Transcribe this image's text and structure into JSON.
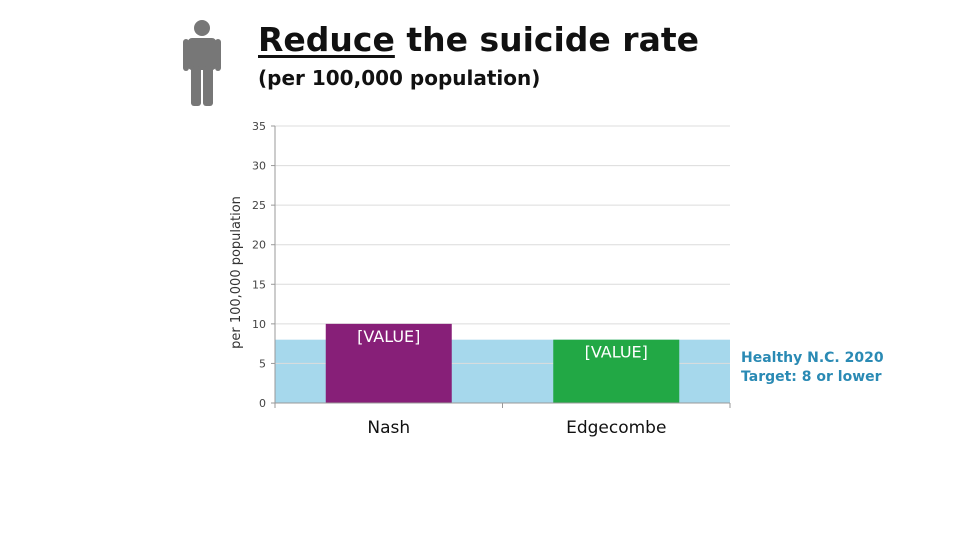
{
  "title": {
    "underlined": "Reduce",
    "rest": " the suicide rate",
    "subtitle": "(per 100,000 population)"
  },
  "icon": "person-icon",
  "chart_data": {
    "type": "bar",
    "categories": [
      "Nash",
      "Edgecombe"
    ],
    "values": [
      10,
      8
    ],
    "bar_labels": [
      "[VALUE]",
      "[VALUE]"
    ],
    "colors": [
      "#871f78",
      "#22a845"
    ],
    "ylabel": "per 100,000 population",
    "ylim": [
      0,
      35
    ],
    "yticks": [
      0,
      5,
      10,
      15,
      20,
      25,
      30,
      35
    ],
    "grid": true,
    "target_band": {
      "value": 8,
      "color": "#a6d8ec",
      "label_lines": [
        "Healthy N.C. 2020",
        "Target: 8 or lower"
      ]
    }
  }
}
